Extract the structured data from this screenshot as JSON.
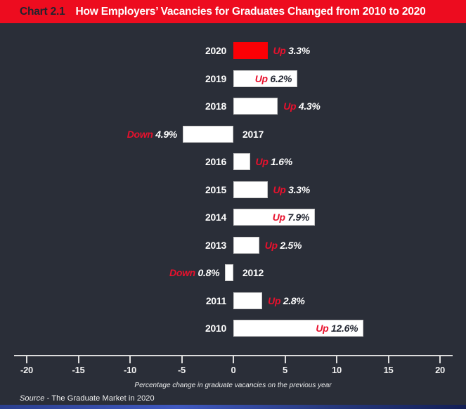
{
  "header": {
    "chart_number": "Chart 2.1",
    "title": "How Employers’ Vacancies for Graduates Changed from 2010 to 2020"
  },
  "chart_data": {
    "type": "bar",
    "orientation": "horizontal",
    "title": "How Employers’ Vacancies for Graduates Changed from 2010 to 2020",
    "categories": [
      "2020",
      "2019",
      "2018",
      "2017",
      "2016",
      "2015",
      "2014",
      "2013",
      "2012",
      "2011",
      "2010"
    ],
    "series": [
      {
        "name": "Percentage change in graduate vacancies on the previous year",
        "values": [
          3.3,
          6.2,
          4.3,
          -4.9,
          1.6,
          3.3,
          7.9,
          2.5,
          -0.8,
          2.8,
          12.6
        ]
      }
    ],
    "bar_labels": [
      {
        "direction": "Up",
        "pct": "3.3%",
        "placement": "outside"
      },
      {
        "direction": "Up",
        "pct": "6.2%",
        "placement": "inside"
      },
      {
        "direction": "Up",
        "pct": "4.3%",
        "placement": "outside"
      },
      {
        "direction": "Down",
        "pct": "4.9%",
        "placement": "outside"
      },
      {
        "direction": "Up",
        "pct": "1.6%",
        "placement": "outside"
      },
      {
        "direction": "Up",
        "pct": "3.3%",
        "placement": "outside"
      },
      {
        "direction": "Up",
        "pct": "7.9%",
        "placement": "inside"
      },
      {
        "direction": "Up",
        "pct": "2.5%",
        "placement": "outside"
      },
      {
        "direction": "Down",
        "pct": "0.8%",
        "placement": "outside"
      },
      {
        "direction": "Up",
        "pct": "2.8%",
        "placement": "outside"
      },
      {
        "direction": "Up",
        "pct": "12.6%",
        "placement": "inside"
      }
    ],
    "highlight_category": "2020",
    "xticks": [
      "-20",
      "-15",
      "-10",
      "-5",
      "0",
      "5",
      "10",
      "15",
      "20"
    ],
    "xlim": [
      -21.2,
      21.2
    ],
    "xlabel": "Percentage change in graduate vacancies on the previous year",
    "grid": false,
    "legend": false
  },
  "source": {
    "prefix": "Source",
    "text": "- The Graduate Market in 2020"
  },
  "colors": {
    "background": "#2a2e38",
    "header_red": "#ed0c1f",
    "header_number_text": "#20242e",
    "bar_highlight": "#fb0005",
    "bar_default": "#ffffff",
    "label_red": "#e8112d",
    "label_light": "#ffffff",
    "label_dark": "#242833",
    "axis": "#dcdcdc",
    "accent_left": "#2b3f8e",
    "accent_mid": "#4059c0",
    "accent_right": "#131f56"
  }
}
